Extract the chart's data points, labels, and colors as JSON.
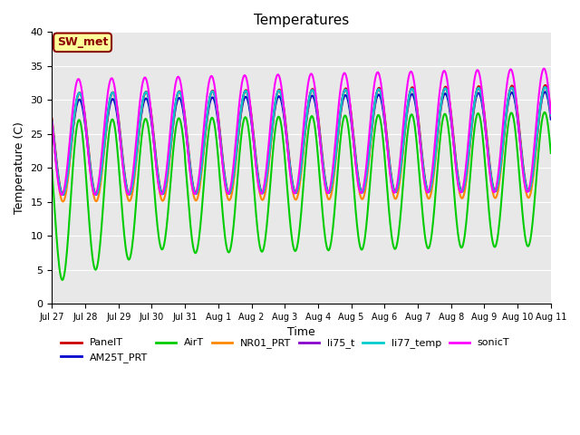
{
  "title": "Temperatures",
  "xlabel": "Time",
  "ylabel": "Temperature (C)",
  "ylim": [
    0,
    40
  ],
  "xlim": [
    0,
    15
  ],
  "annotation": "SW_met",
  "background_color": "#E8E8E8",
  "series": {
    "PanelT": {
      "color": "#CC0000",
      "lw": 1.5
    },
    "AM25T_PRT": {
      "color": "#0000CC",
      "lw": 1.5
    },
    "AirT": {
      "color": "#00CC00",
      "lw": 1.5
    },
    "NR01_PRT": {
      "color": "#FF8800",
      "lw": 1.5
    },
    "li75_t": {
      "color": "#8800CC",
      "lw": 1.5
    },
    "li77_temp": {
      "color": "#00CCCC",
      "lw": 1.5
    },
    "sonicT": {
      "color": "#FF00FF",
      "lw": 1.5
    }
  },
  "xtick_labels": [
    "Jul 27",
    "Jul 28",
    "Jul 29",
    "Jul 30",
    "Jul 31",
    "Aug 1",
    "Aug 2",
    "Aug 3",
    "Aug 4",
    "Aug 5",
    "Aug 6",
    "Aug 7",
    "Aug 8",
    "Aug 9",
    "Aug 10",
    "Aug 11"
  ],
  "ytick_vals": [
    0,
    5,
    10,
    15,
    20,
    25,
    30,
    35,
    40
  ]
}
